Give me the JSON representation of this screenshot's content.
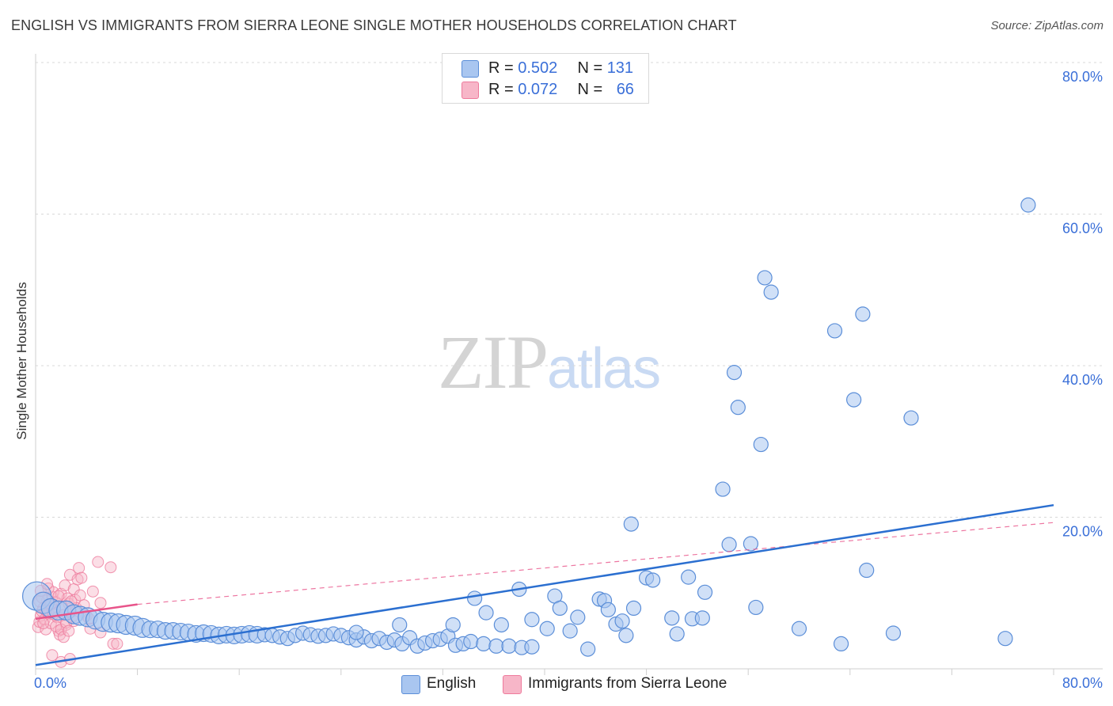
{
  "title": "ENGLISH VS IMMIGRANTS FROM SIERRA LEONE SINGLE MOTHER HOUSEHOLDS CORRELATION CHART",
  "source": "Source: ZipAtlas.com",
  "watermark": {
    "zip": "ZIP",
    "atlas": "atlas"
  },
  "colors": {
    "english_fill": "#a9c6f0",
    "english_stroke": "#5b8ed8",
    "english_line": "#2b6fd0",
    "sierra_fill": "#f7b6c8",
    "sierra_stroke": "#ee7a9c",
    "sierra_line": "#e8548a",
    "grid": "#d8d8d8",
    "tick_label": "#3a6fd8"
  },
  "legend": {
    "rows": [
      {
        "r_label": "R = ",
        "r_value": "0.502",
        "n_label": "N = ",
        "n_value": "131",
        "series": "english"
      },
      {
        "r_label": "R = ",
        "r_value": "0.072",
        "n_label": "N = ",
        "n_value": "66",
        "series": "sierra"
      }
    ]
  },
  "bottom_legend": {
    "english": "English",
    "sierra": "Immigrants from Sierra Leone"
  },
  "chart_data": {
    "type": "scatter",
    "title": "ENGLISH VS IMMIGRANTS FROM SIERRA LEONE SINGLE MOTHER HOUSEHOLDS CORRELATION CHART",
    "xlabel": "",
    "ylabel": "Single Mother Households",
    "xlim": [
      0,
      80
    ],
    "ylim": [
      0,
      80
    ],
    "x_tick_labels": [
      "0.0%",
      "80.0%"
    ],
    "y_ticks": [
      20,
      40,
      60,
      80
    ],
    "y_tick_labels": [
      "20.0%",
      "40.0%",
      "60.0%",
      "80.0%"
    ],
    "grid": true,
    "legend_position": "top-center",
    "series": [
      {
        "name": "English",
        "color": "#a9c6f0",
        "R": 0.502,
        "N": 131,
        "trend": {
          "x": [
            0,
            80
          ],
          "y": [
            0.5,
            21.6
          ]
        },
        "points": [
          [
            0.1,
            9.6,
            24
          ],
          [
            0.6,
            8.7,
            18
          ],
          [
            1.2,
            8.0,
            16
          ],
          [
            1.8,
            7.7,
            16
          ],
          [
            2.4,
            7.7,
            16
          ],
          [
            3.0,
            7.2,
            16
          ],
          [
            3.5,
            7.0,
            16
          ],
          [
            4.1,
            6.8,
            16
          ],
          [
            4.7,
            6.5,
            16
          ],
          [
            5.3,
            6.2,
            16
          ],
          [
            5.9,
            6.1,
            16
          ],
          [
            6.5,
            6.0,
            16
          ],
          [
            7.1,
            5.8,
            16
          ],
          [
            7.8,
            5.7,
            16
          ],
          [
            8.4,
            5.4,
            16
          ],
          [
            9.0,
            5.2,
            14
          ],
          [
            9.6,
            5.2,
            14
          ],
          [
            10.2,
            5.0,
            14
          ],
          [
            10.8,
            5.0,
            14
          ],
          [
            11.4,
            4.9,
            14
          ],
          [
            12.0,
            4.8,
            14
          ],
          [
            12.6,
            4.6,
            14
          ],
          [
            13.2,
            4.7,
            14
          ],
          [
            13.8,
            4.6,
            14
          ],
          [
            14.4,
            4.4,
            14
          ],
          [
            15.0,
            4.5,
            14
          ],
          [
            15.6,
            4.4,
            14
          ],
          [
            16.2,
            4.5,
            14
          ],
          [
            16.8,
            4.6,
            14
          ],
          [
            17.4,
            4.5,
            14
          ],
          [
            18.0,
            4.5,
            12
          ],
          [
            18.6,
            4.4,
            12
          ],
          [
            19.2,
            4.2,
            12
          ],
          [
            19.8,
            4.0,
            12
          ],
          [
            20.4,
            4.4,
            12
          ],
          [
            21.0,
            4.7,
            12
          ],
          [
            21.6,
            4.5,
            12
          ],
          [
            22.2,
            4.3,
            12
          ],
          [
            22.8,
            4.4,
            12
          ],
          [
            23.4,
            4.6,
            12
          ],
          [
            24.0,
            4.4,
            12
          ],
          [
            24.6,
            4.1,
            12
          ],
          [
            25.2,
            3.8,
            12
          ],
          [
            25.8,
            4.2,
            12
          ],
          [
            26.4,
            3.7,
            12
          ],
          [
            27.0,
            4.0,
            12
          ],
          [
            27.6,
            3.5,
            12
          ],
          [
            28.2,
            3.8,
            12
          ],
          [
            28.8,
            3.3,
            12
          ],
          [
            29.4,
            4.1,
            12
          ],
          [
            30.0,
            3.0,
            12
          ],
          [
            30.6,
            3.4,
            12
          ],
          [
            31.2,
            3.7,
            12
          ],
          [
            31.8,
            3.9,
            12
          ],
          [
            32.4,
            4.3,
            12
          ],
          [
            33.0,
            3.1,
            12
          ],
          [
            33.6,
            3.3,
            12
          ],
          [
            34.2,
            3.6,
            12
          ],
          [
            35.2,
            3.3,
            12
          ],
          [
            36.2,
            3.0,
            12
          ],
          [
            37.2,
            3.0,
            12
          ],
          [
            38.2,
            2.8,
            12
          ],
          [
            39.0,
            2.9,
            12
          ],
          [
            25.2,
            4.8,
            12
          ],
          [
            28.6,
            5.8,
            12
          ],
          [
            32.8,
            5.8,
            12
          ],
          [
            34.5,
            9.3,
            12
          ],
          [
            35.4,
            7.4,
            12
          ],
          [
            36.6,
            5.8,
            12
          ],
          [
            38.0,
            10.5,
            12
          ],
          [
            39.0,
            6.5,
            12
          ],
          [
            40.2,
            5.3,
            12
          ],
          [
            40.8,
            9.6,
            12
          ],
          [
            41.2,
            8.0,
            12
          ],
          [
            42.0,
            5.0,
            12
          ],
          [
            42.6,
            6.8,
            12
          ],
          [
            43.4,
            2.6,
            12
          ],
          [
            44.3,
            9.2,
            12
          ],
          [
            44.7,
            9.0,
            12
          ],
          [
            45.0,
            7.8,
            12
          ],
          [
            45.6,
            5.9,
            12
          ],
          [
            46.1,
            6.3,
            12
          ],
          [
            46.4,
            4.4,
            12
          ],
          [
            47.0,
            8.0,
            12
          ],
          [
            46.8,
            19.1,
            12
          ],
          [
            48.0,
            12.0,
            12
          ],
          [
            48.5,
            11.7,
            12
          ],
          [
            50.0,
            6.7,
            12
          ],
          [
            50.4,
            4.6,
            12
          ],
          [
            51.3,
            12.1,
            12
          ],
          [
            51.6,
            6.6,
            12
          ],
          [
            52.4,
            6.7,
            12
          ],
          [
            52.6,
            10.1,
            12
          ],
          [
            54.0,
            23.7,
            12
          ],
          [
            54.5,
            16.4,
            12
          ],
          [
            54.9,
            39.1,
            12
          ],
          [
            55.2,
            34.5,
            12
          ],
          [
            56.2,
            16.5,
            12
          ],
          [
            56.6,
            8.1,
            12
          ],
          [
            57.0,
            29.6,
            12
          ],
          [
            57.3,
            51.6,
            12
          ],
          [
            57.8,
            49.7,
            12
          ],
          [
            60.0,
            5.3,
            12
          ],
          [
            62.8,
            44.6,
            12
          ],
          [
            63.3,
            3.3,
            12
          ],
          [
            64.3,
            35.5,
            12
          ],
          [
            65.0,
            46.8,
            12
          ],
          [
            65.3,
            13.0,
            12
          ],
          [
            67.4,
            4.7,
            12
          ],
          [
            68.8,
            33.1,
            12
          ],
          [
            76.2,
            4.0,
            12
          ],
          [
            78.0,
            61.2,
            12
          ]
        ]
      },
      {
        "name": "Immigrants from Sierra Leone",
        "color": "#f7b6c8",
        "R": 0.072,
        "N": 66,
        "trend": {
          "x": [
            0,
            8
          ],
          "y": [
            6.6,
            8.5
          ]
        },
        "trend_dashed": {
          "x": [
            8,
            80
          ],
          "y": [
            8.5,
            19.3
          ]
        },
        "points": [
          [
            0.2,
            5.5
          ],
          [
            0.3,
            6.2
          ],
          [
            0.4,
            7.0
          ],
          [
            0.5,
            7.6
          ],
          [
            0.6,
            8.0
          ],
          [
            0.7,
            6.5
          ],
          [
            0.8,
            5.2
          ],
          [
            0.9,
            9.0
          ],
          [
            1.0,
            7.3
          ],
          [
            1.1,
            8.4
          ],
          [
            1.2,
            6.0
          ],
          [
            1.3,
            9.5
          ],
          [
            1.4,
            10.1
          ],
          [
            1.5,
            7.8
          ],
          [
            1.6,
            8.8
          ],
          [
            1.7,
            6.8
          ],
          [
            1.8,
            5.0
          ],
          [
            1.9,
            4.5
          ],
          [
            2.0,
            9.9
          ],
          [
            2.1,
            8.2
          ],
          [
            2.2,
            7.1
          ],
          [
            2.3,
            11.0
          ],
          [
            2.4,
            5.8
          ],
          [
            2.5,
            9.3
          ],
          [
            2.6,
            8.6
          ],
          [
            2.7,
            12.4
          ],
          [
            2.8,
            7.5
          ],
          [
            2.9,
            6.9
          ],
          [
            3.0,
            10.5
          ],
          [
            3.1,
            9.1
          ],
          [
            3.2,
            8.0
          ],
          [
            3.3,
            11.8
          ],
          [
            3.4,
            13.3
          ],
          [
            3.5,
            9.7
          ],
          [
            3.6,
            12.0
          ],
          [
            3.8,
            8.4
          ],
          [
            4.0,
            7.0
          ],
          [
            4.2,
            6.6
          ],
          [
            4.5,
            10.2
          ],
          [
            4.9,
            14.1
          ],
          [
            5.1,
            8.7
          ],
          [
            0.3,
            8.9
          ],
          [
            0.5,
            9.4
          ],
          [
            0.6,
            6.0
          ],
          [
            0.8,
            7.7
          ],
          [
            1.0,
            10.6
          ],
          [
            1.2,
            8.5
          ],
          [
            1.4,
            7.2
          ],
          [
            1.6,
            5.6
          ],
          [
            1.8,
            9.6
          ],
          [
            2.0,
            5.2
          ],
          [
            2.2,
            4.2
          ],
          [
            2.4,
            6.1
          ],
          [
            2.6,
            5.0
          ],
          [
            2.8,
            8.9
          ],
          [
            3.0,
            6.3
          ],
          [
            1.3,
            1.8
          ],
          [
            2.0,
            0.9
          ],
          [
            2.7,
            1.3
          ],
          [
            4.3,
            5.3
          ],
          [
            5.1,
            4.8
          ],
          [
            5.9,
            13.4
          ],
          [
            6.1,
            3.3
          ],
          [
            6.4,
            3.3
          ],
          [
            0.4,
            10.3
          ],
          [
            0.9,
            11.2
          ]
        ]
      }
    ]
  }
}
